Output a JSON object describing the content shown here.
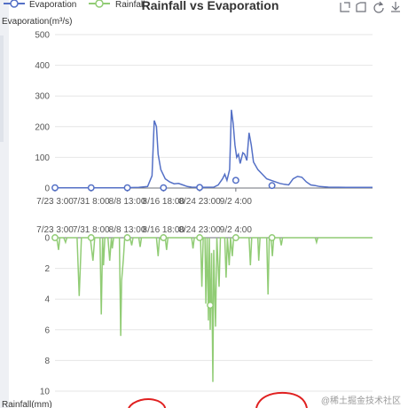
{
  "legend": {
    "items": [
      {
        "label": "Evaporation",
        "color": "#5470c6"
      },
      {
        "label": "Rainfall",
        "color": "#91cc75"
      }
    ]
  },
  "toolbox": {
    "icons": [
      "zoom-select-icon",
      "zoom-reset-icon",
      "restore-icon",
      "save-image-icon"
    ]
  },
  "watermark": "@稀土掘金技术社区",
  "chart_data": {
    "type": "line",
    "title": "Rainfall vs Evaporation",
    "x_tick_labels": [
      "7/23 3:00",
      "7/31 8:00",
      "8/8 13:00",
      "8/16 18:00",
      "8/24 23:00",
      "9/2 4:00"
    ],
    "grid": true,
    "legend_position": "top-left",
    "series": [
      {
        "name": "Evaporation",
        "color": "#5470c6",
        "y_axis_name": "Evaporation(m³/s)",
        "ylim": [
          0,
          500
        ],
        "y_ticks": [
          0,
          100,
          200,
          300,
          400,
          500
        ],
        "inverse": false,
        "points": [
          [
            0,
            1
          ],
          [
            5,
            1
          ],
          [
            10,
            1
          ],
          [
            15,
            1
          ],
          [
            19,
            2
          ],
          [
            21,
            5
          ],
          [
            22,
            40
          ],
          [
            22.5,
            220
          ],
          [
            23,
            200
          ],
          [
            23.4,
            110
          ],
          [
            24,
            60
          ],
          [
            25,
            30
          ],
          [
            26,
            20
          ],
          [
            27,
            14
          ],
          [
            28,
            15
          ],
          [
            29,
            10
          ],
          [
            30,
            5
          ],
          [
            31,
            3
          ],
          [
            33,
            2
          ],
          [
            36,
            3
          ],
          [
            37,
            10
          ],
          [
            38,
            30
          ],
          [
            38.5,
            45
          ],
          [
            39,
            25
          ],
          [
            39.6,
            60
          ],
          [
            40,
            255
          ],
          [
            40.4,
            210
          ],
          [
            40.8,
            140
          ],
          [
            41.2,
            100
          ],
          [
            41.6,
            110
          ],
          [
            42,
            80
          ],
          [
            42.6,
            115
          ],
          [
            43,
            110
          ],
          [
            43.5,
            90
          ],
          [
            44,
            180
          ],
          [
            44.5,
            140
          ],
          [
            45,
            85
          ],
          [
            46,
            60
          ],
          [
            47,
            45
          ],
          [
            48,
            30
          ],
          [
            50,
            20
          ],
          [
            51,
            15
          ],
          [
            52,
            12
          ],
          [
            53,
            10
          ],
          [
            54,
            30
          ],
          [
            55,
            38
          ],
          [
            56,
            35
          ],
          [
            57,
            20
          ],
          [
            58,
            10
          ],
          [
            59,
            8
          ],
          [
            60,
            5
          ],
          [
            62,
            3
          ],
          [
            66,
            2
          ],
          [
            72,
            2
          ]
        ],
        "markers": [
          [
            0,
            1
          ],
          [
            8.2,
            1
          ],
          [
            16.4,
            1
          ],
          [
            24.6,
            1
          ],
          [
            32.8,
            2
          ],
          [
            41,
            25
          ],
          [
            49.2,
            8
          ]
        ]
      },
      {
        "name": "Rainfall",
        "color": "#91cc75",
        "y_axis_name": "Rainfall(mm)",
        "ylim": [
          0,
          10
        ],
        "y_ticks": [
          0,
          2,
          4,
          6,
          8,
          10
        ],
        "inverse": true,
        "points": [
          [
            0,
            0
          ],
          [
            0.5,
            0.2
          ],
          [
            0.8,
            0.8
          ],
          [
            1.1,
            0
          ],
          [
            2,
            0
          ],
          [
            2.4,
            0.3
          ],
          [
            2.7,
            0
          ],
          [
            5,
            0
          ],
          [
            5.5,
            3.8
          ],
          [
            6,
            0
          ],
          [
            8,
            0
          ],
          [
            8.6,
            1.5
          ],
          [
            9,
            0
          ],
          [
            10.2,
            0
          ],
          [
            10.5,
            5
          ],
          [
            10.8,
            0
          ],
          [
            11,
            1.8
          ],
          [
            11.3,
            0
          ],
          [
            12,
            0
          ],
          [
            12.4,
            1.5
          ],
          [
            12.8,
            0
          ],
          [
            13,
            0.7
          ],
          [
            13.3,
            0
          ],
          [
            14.6,
            0
          ],
          [
            14.9,
            6.4
          ],
          [
            15.1,
            2.8
          ],
          [
            15.5,
            1.4
          ],
          [
            15.8,
            0
          ],
          [
            17,
            0
          ],
          [
            17.4,
            0.5
          ],
          [
            17.7,
            0
          ],
          [
            19,
            0
          ],
          [
            19.3,
            0.6
          ],
          [
            19.6,
            0
          ],
          [
            23,
            0
          ],
          [
            23.4,
            1.2
          ],
          [
            23.7,
            0
          ],
          [
            25,
            0
          ],
          [
            25.3,
            0.8
          ],
          [
            25.6,
            0
          ],
          [
            31,
            0
          ],
          [
            31.3,
            0.7
          ],
          [
            31.6,
            0
          ],
          [
            33,
            0
          ],
          [
            33.3,
            3.2
          ],
          [
            33.6,
            0
          ],
          [
            34,
            0
          ],
          [
            34.2,
            4.3
          ],
          [
            34.5,
            0
          ],
          [
            34.8,
            5.4
          ],
          [
            35,
            0
          ],
          [
            35.2,
            6
          ],
          [
            35.5,
            1
          ],
          [
            35.8,
            9.4
          ],
          [
            36,
            0.8
          ],
          [
            36.4,
            5.8
          ],
          [
            36.7,
            0
          ],
          [
            37.2,
            3.2
          ],
          [
            37.5,
            0
          ],
          [
            38.5,
            0
          ],
          [
            38.8,
            2.6
          ],
          [
            39.1,
            0
          ],
          [
            39.5,
            1.8
          ],
          [
            39.8,
            0
          ],
          [
            40.2,
            1.2
          ],
          [
            40.5,
            0
          ],
          [
            44,
            0
          ],
          [
            44.3,
            1.8
          ],
          [
            44.6,
            0
          ],
          [
            46,
            0
          ],
          [
            46.2,
            1.5
          ],
          [
            46.5,
            0
          ],
          [
            48,
            0
          ],
          [
            48.3,
            3.7
          ],
          [
            48.6,
            0
          ],
          [
            49,
            0
          ],
          [
            49.3,
            1.2
          ],
          [
            49.6,
            0
          ],
          [
            51,
            0
          ],
          [
            51.3,
            0.5
          ],
          [
            51.6,
            0
          ],
          [
            59,
            0
          ],
          [
            59.3,
            0.3
          ],
          [
            59.6,
            0
          ],
          [
            72,
            0
          ]
        ],
        "markers": [
          [
            0,
            0
          ],
          [
            8.2,
            0
          ],
          [
            16.4,
            0
          ],
          [
            24.6,
            0
          ],
          [
            32.8,
            0
          ],
          [
            35.2,
            4.4
          ],
          [
            41,
            0
          ],
          [
            49.2,
            0
          ]
        ]
      }
    ]
  }
}
